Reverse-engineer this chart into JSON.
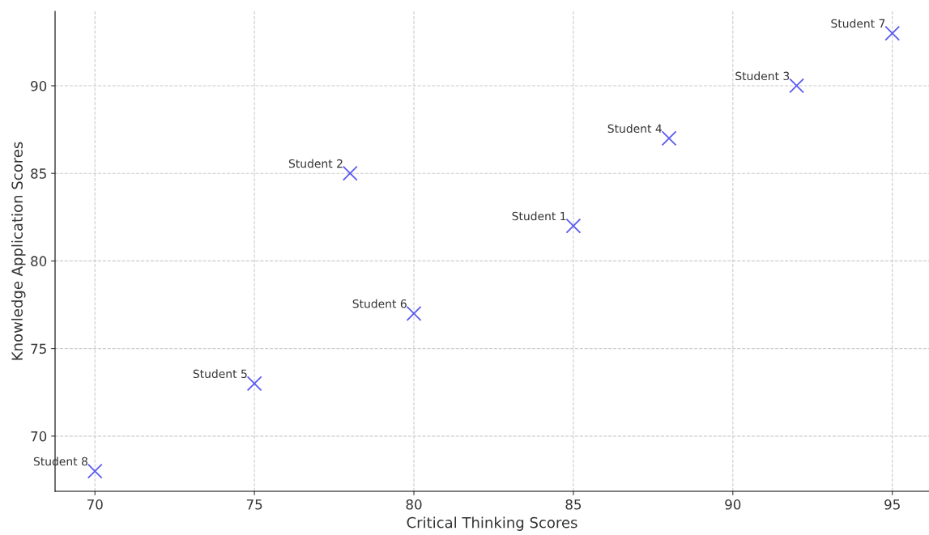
{
  "chart_data": {
    "type": "scatter",
    "xlabel": "Critical Thinking Scores",
    "ylabel": "Knowledge Application Scores",
    "x": [
      85,
      78,
      92,
      88,
      75,
      80,
      95,
      70
    ],
    "series": [
      {
        "color": "#5a5af0",
        "values": [
          82,
          85,
          90,
          87,
          73,
          77,
          93,
          68
        ]
      }
    ],
    "annotations": [
      {
        "text": "Student 1",
        "x": 85,
        "y": 82
      },
      {
        "text": "Student 2",
        "x": 78,
        "y": 85
      },
      {
        "text": "Student 3",
        "x": 92,
        "y": 90
      },
      {
        "text": "Student 4",
        "x": 88,
        "y": 87
      },
      {
        "text": "Student 5",
        "x": 75,
        "y": 73
      },
      {
        "text": "Student 6",
        "x": 80,
        "y": 77
      },
      {
        "text": "Student 7",
        "x": 95,
        "y": 93
      },
      {
        "text": "Student 8",
        "x": 70,
        "y": 68
      }
    ],
    "xlim": [
      68.75,
      96.15
    ],
    "ylim": [
      66.85,
      94.25
    ],
    "xticks": [
      70,
      75,
      80,
      85,
      90,
      95
    ],
    "yticks": [
      70,
      75,
      80,
      85,
      90
    ],
    "grid": true,
    "marker": "cross"
  }
}
